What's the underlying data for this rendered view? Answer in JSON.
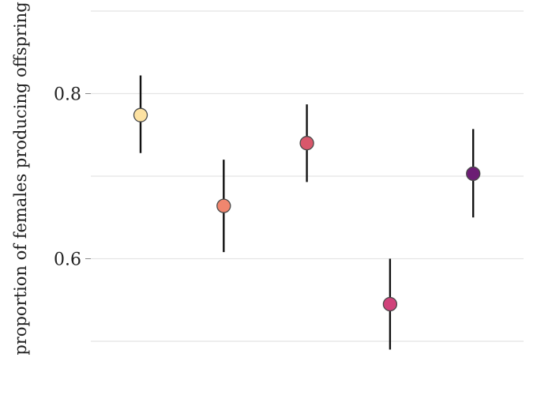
{
  "chart_data": {
    "type": "scatter",
    "ylabel": "proportion of females producing offspring",
    "xlabel": "",
    "ylim": [
      0.48,
      0.895
    ],
    "yticks": [
      0.6,
      0.8
    ],
    "yticks_minor": [
      0.5,
      0.7,
      0.9
    ],
    "grid": true,
    "points": [
      {
        "x": 1,
        "y": 0.774,
        "low": 0.728,
        "high": 0.822,
        "color": "#FDE2A2"
      },
      {
        "x": 2,
        "y": 0.664,
        "low": 0.608,
        "high": 0.72,
        "color": "#F0866E"
      },
      {
        "x": 3,
        "y": 0.74,
        "low": 0.693,
        "high": 0.787,
        "color": "#D8576B"
      },
      {
        "x": 4,
        "y": 0.545,
        "low": 0.49,
        "high": 0.6,
        "color": "#D0427A"
      },
      {
        "x": 5,
        "y": 0.703,
        "low": 0.65,
        "high": 0.757,
        "color": "#6C1D74"
      }
    ],
    "xlim": [
      0.4,
      5.6
    ]
  }
}
